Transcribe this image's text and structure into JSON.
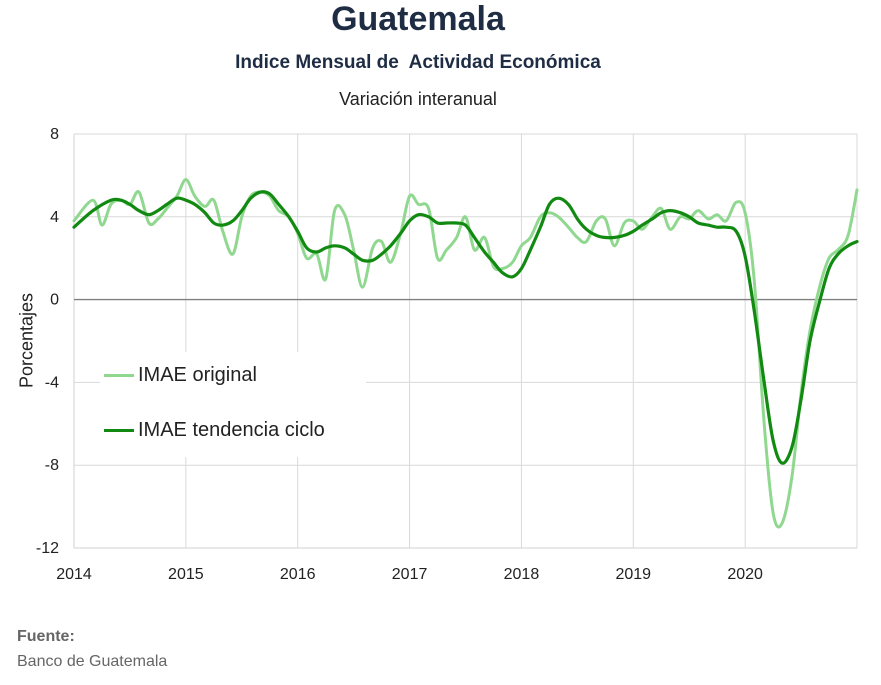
{
  "title": "Guatemala",
  "subtitle": "Indice Mensual de  Actividad Económica",
  "subtitle2": "Variación interanual",
  "source": {
    "label": "Fuente:",
    "text": "Banco de Guatemala"
  },
  "colors": {
    "original": "#90d890",
    "trend": "#128a12",
    "grid": "#d9d9d9",
    "zero": "#808080"
  },
  "chart_data": {
    "type": "line",
    "title": "Indice Mensual de  Actividad Económica",
    "subtitle": "Variación interanual",
    "xlabel": "",
    "ylabel": "Porcentajes",
    "ylim": [
      -12,
      8
    ],
    "yticks": [
      8,
      4,
      0,
      -4,
      -8,
      -12
    ],
    "xlim": [
      2014,
      2021
    ],
    "xticks": [
      "2014",
      "2015",
      "2016",
      "2017",
      "2018",
      "2019",
      "2020"
    ],
    "grid": true,
    "legend_position": "left-middle",
    "series": [
      {
        "name": "IMAE original",
        "points": [
          [
            2014.0,
            3.8
          ],
          [
            2014.17,
            4.8
          ],
          [
            2014.25,
            3.6
          ],
          [
            2014.33,
            4.6
          ],
          [
            2014.42,
            4.8
          ],
          [
            2014.5,
            4.6
          ],
          [
            2014.58,
            5.2
          ],
          [
            2014.67,
            3.7
          ],
          [
            2014.75,
            3.9
          ],
          [
            2014.83,
            4.4
          ],
          [
            2014.92,
            5.0
          ],
          [
            2015.0,
            5.8
          ],
          [
            2015.08,
            5.0
          ],
          [
            2015.17,
            4.5
          ],
          [
            2015.25,
            4.8
          ],
          [
            2015.33,
            3.3
          ],
          [
            2015.42,
            2.2
          ],
          [
            2015.5,
            4.0
          ],
          [
            2015.58,
            5.0
          ],
          [
            2015.67,
            5.2
          ],
          [
            2015.75,
            5.0
          ],
          [
            2015.83,
            4.3
          ],
          [
            2015.92,
            4.0
          ],
          [
            2016.0,
            3.2
          ],
          [
            2016.08,
            2.0
          ],
          [
            2016.17,
            2.2
          ],
          [
            2016.25,
            1.0
          ],
          [
            2016.33,
            4.3
          ],
          [
            2016.42,
            4.1
          ],
          [
            2016.5,
            2.4
          ],
          [
            2016.58,
            0.6
          ],
          [
            2016.67,
            2.5
          ],
          [
            2016.75,
            2.8
          ],
          [
            2016.83,
            1.8
          ],
          [
            2016.92,
            3.2
          ],
          [
            2017.0,
            5.0
          ],
          [
            2017.08,
            4.6
          ],
          [
            2017.17,
            4.4
          ],
          [
            2017.25,
            2.0
          ],
          [
            2017.33,
            2.4
          ],
          [
            2017.42,
            3.0
          ],
          [
            2017.5,
            4.0
          ],
          [
            2017.58,
            2.4
          ],
          [
            2017.67,
            3.0
          ],
          [
            2017.75,
            1.6
          ],
          [
            2017.83,
            1.5
          ],
          [
            2017.92,
            1.8
          ],
          [
            2018.0,
            2.6
          ],
          [
            2018.08,
            3.0
          ],
          [
            2018.17,
            4.0
          ],
          [
            2018.25,
            4.2
          ],
          [
            2018.33,
            4.0
          ],
          [
            2018.42,
            3.5
          ],
          [
            2018.5,
            3.0
          ],
          [
            2018.58,
            2.8
          ],
          [
            2018.67,
            3.8
          ],
          [
            2018.75,
            3.9
          ],
          [
            2018.83,
            2.6
          ],
          [
            2018.92,
            3.7
          ],
          [
            2019.0,
            3.8
          ],
          [
            2019.08,
            3.4
          ],
          [
            2019.17,
            4.0
          ],
          [
            2019.25,
            4.4
          ],
          [
            2019.33,
            3.4
          ],
          [
            2019.42,
            4.0
          ],
          [
            2019.5,
            3.9
          ],
          [
            2019.58,
            4.3
          ],
          [
            2019.67,
            3.9
          ],
          [
            2019.75,
            4.1
          ],
          [
            2019.83,
            3.8
          ],
          [
            2019.92,
            4.7
          ],
          [
            2020.0,
            4.2
          ],
          [
            2020.08,
            1.0
          ],
          [
            2020.17,
            -6.0
          ],
          [
            2020.25,
            -10.3
          ],
          [
            2020.33,
            -10.8
          ],
          [
            2020.42,
            -8.5
          ],
          [
            2020.5,
            -4.5
          ],
          [
            2020.58,
            -1.5
          ],
          [
            2020.67,
            0.7
          ],
          [
            2020.75,
            2.0
          ],
          [
            2020.83,
            2.4
          ],
          [
            2020.92,
            3.1
          ],
          [
            2021.0,
            5.3
          ]
        ]
      },
      {
        "name": "IMAE tendencia ciclo",
        "points": [
          [
            2014.0,
            3.5
          ],
          [
            2014.17,
            4.3
          ],
          [
            2014.33,
            4.8
          ],
          [
            2014.42,
            4.8
          ],
          [
            2014.5,
            4.6
          ],
          [
            2014.58,
            4.3
          ],
          [
            2014.67,
            4.1
          ],
          [
            2014.75,
            4.3
          ],
          [
            2014.83,
            4.6
          ],
          [
            2014.92,
            4.9
          ],
          [
            2015.0,
            4.8
          ],
          [
            2015.08,
            4.6
          ],
          [
            2015.17,
            4.2
          ],
          [
            2015.25,
            3.7
          ],
          [
            2015.33,
            3.6
          ],
          [
            2015.42,
            3.8
          ],
          [
            2015.5,
            4.3
          ],
          [
            2015.58,
            4.9
          ],
          [
            2015.67,
            5.2
          ],
          [
            2015.75,
            5.1
          ],
          [
            2015.83,
            4.6
          ],
          [
            2015.92,
            4.0
          ],
          [
            2016.0,
            3.3
          ],
          [
            2016.08,
            2.5
          ],
          [
            2016.17,
            2.3
          ],
          [
            2016.25,
            2.5
          ],
          [
            2016.33,
            2.6
          ],
          [
            2016.42,
            2.5
          ],
          [
            2016.5,
            2.2
          ],
          [
            2016.58,
            1.9
          ],
          [
            2016.67,
            1.9
          ],
          [
            2016.75,
            2.2
          ],
          [
            2016.83,
            2.6
          ],
          [
            2016.92,
            3.2
          ],
          [
            2017.0,
            3.8
          ],
          [
            2017.08,
            4.1
          ],
          [
            2017.17,
            4.0
          ],
          [
            2017.25,
            3.7
          ],
          [
            2017.33,
            3.7
          ],
          [
            2017.42,
            3.7
          ],
          [
            2017.5,
            3.6
          ],
          [
            2017.58,
            3.0
          ],
          [
            2017.67,
            2.3
          ],
          [
            2017.75,
            1.8
          ],
          [
            2017.83,
            1.3
          ],
          [
            2017.92,
            1.1
          ],
          [
            2018.0,
            1.5
          ],
          [
            2018.08,
            2.4
          ],
          [
            2018.17,
            3.5
          ],
          [
            2018.25,
            4.6
          ],
          [
            2018.33,
            4.9
          ],
          [
            2018.42,
            4.6
          ],
          [
            2018.5,
            3.9
          ],
          [
            2018.58,
            3.4
          ],
          [
            2018.67,
            3.1
          ],
          [
            2018.75,
            3.0
          ],
          [
            2018.83,
            3.0
          ],
          [
            2018.92,
            3.1
          ],
          [
            2019.0,
            3.3
          ],
          [
            2019.08,
            3.6
          ],
          [
            2019.17,
            3.9
          ],
          [
            2019.25,
            4.2
          ],
          [
            2019.33,
            4.3
          ],
          [
            2019.42,
            4.2
          ],
          [
            2019.5,
            4.0
          ],
          [
            2019.58,
            3.7
          ],
          [
            2019.67,
            3.6
          ],
          [
            2019.75,
            3.5
          ],
          [
            2019.83,
            3.5
          ],
          [
            2019.92,
            3.3
          ],
          [
            2020.0,
            2.1
          ],
          [
            2020.08,
            -0.5
          ],
          [
            2020.17,
            -4.0
          ],
          [
            2020.25,
            -6.8
          ],
          [
            2020.33,
            -7.9
          ],
          [
            2020.42,
            -7.1
          ],
          [
            2020.5,
            -4.8
          ],
          [
            2020.58,
            -2.0
          ],
          [
            2020.67,
            0.0
          ],
          [
            2020.75,
            1.5
          ],
          [
            2020.83,
            2.2
          ],
          [
            2020.92,
            2.6
          ],
          [
            2021.0,
            2.8
          ]
        ]
      }
    ]
  }
}
